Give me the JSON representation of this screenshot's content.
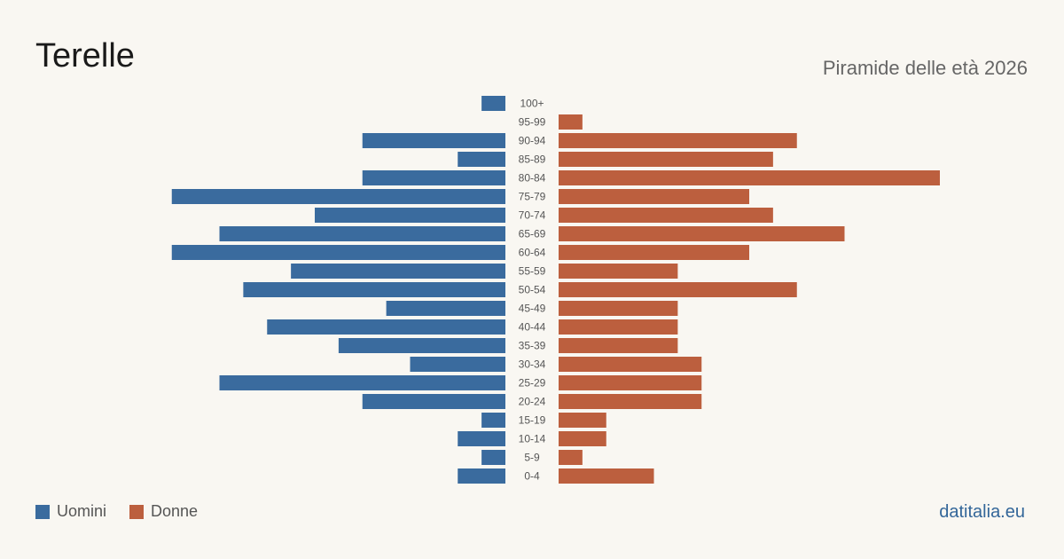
{
  "header": {
    "title": "Terelle",
    "subtitle": "Piramide delle età 2026"
  },
  "legend": [
    {
      "label": "Uomini",
      "color": "#3a6b9e"
    },
    {
      "label": "Donne",
      "color": "#bc5f3e"
    }
  ],
  "footer": {
    "brand": "datitalia.eu"
  },
  "chart_data": {
    "type": "bar",
    "orientation": "horizontal-pyramid",
    "categories": [
      "100+",
      "95-99",
      "90-94",
      "85-89",
      "80-84",
      "75-79",
      "70-74",
      "65-69",
      "60-64",
      "55-59",
      "50-54",
      "45-49",
      "40-44",
      "35-39",
      "30-34",
      "25-29",
      "20-24",
      "15-19",
      "10-14",
      "5-9",
      "0-4"
    ],
    "series": [
      {
        "name": "Uomini",
        "color": "#3a6b9e",
        "values": [
          1,
          0,
          6,
          2,
          6,
          14,
          8,
          12,
          14,
          9,
          11,
          5,
          10,
          7,
          4,
          12,
          6,
          1,
          2,
          1,
          2
        ]
      },
      {
        "name": "Donne",
        "color": "#bc5f3e",
        "values": [
          0,
          1,
          10,
          9,
          16,
          8,
          9,
          12,
          8,
          5,
          10,
          5,
          5,
          5,
          6,
          6,
          6,
          2,
          2,
          1,
          4
        ]
      }
    ],
    "xlim": [
      0,
      16
    ],
    "grid": false
  }
}
